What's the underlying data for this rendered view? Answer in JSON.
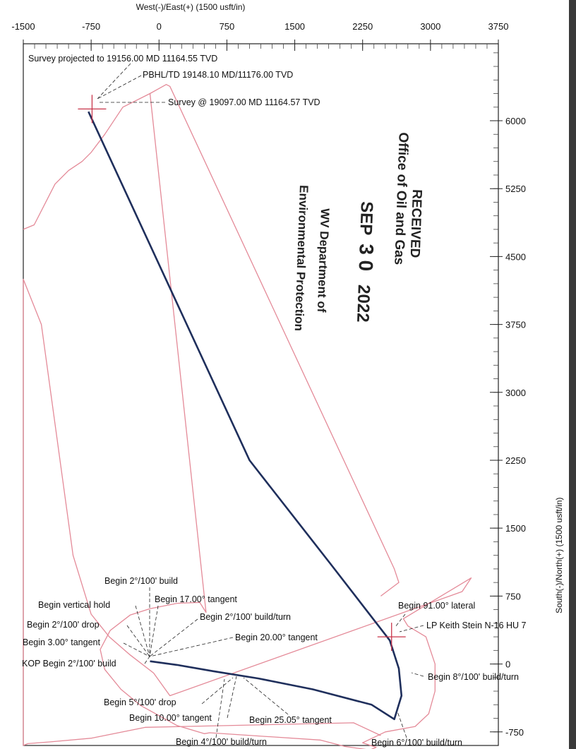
{
  "chart_data": {
    "type": "line",
    "x_axis": {
      "label": "West(-)/East(+) (1500 usft/in)",
      "range": [
        -1500,
        3750
      ],
      "ticks": [
        -1500,
        -750,
        0,
        750,
        1500,
        2250,
        3000,
        3750
      ],
      "tick_labels": [
        "-1500",
        "-750",
        "0",
        "750",
        "1500",
        "2250",
        "3000",
        "3750"
      ]
    },
    "y_axis": {
      "label": "South(-)/North(+) (1500 usft/in)",
      "range": [
        -900,
        6850
      ],
      "ticks": [
        -750,
        0,
        750,
        1500,
        2250,
        3000,
        3750,
        4500,
        5250,
        6000
      ],
      "tick_labels": [
        "-750",
        "0",
        "750",
        "1500",
        "2250",
        "3000",
        "3750",
        "4500",
        "5250",
        "6000"
      ]
    },
    "series": [
      {
        "color": "#e48a98",
        "x": [
          2450,
          2150,
          -150,
          -450,
          -750,
          -1200,
          -1450,
          -1500,
          -1500,
          -1300,
          -950,
          -750,
          -550,
          -320,
          -60,
          120,
          3350,
          3450,
          2700,
          2750,
          2950,
          3050,
          3050,
          2980,
          2830,
          2500,
          2250,
          2400,
          2330,
          2050,
          1780,
          560,
          500,
          200,
          -200,
          -420,
          -600,
          -650,
          -540,
          -320,
          -100,
          200
        ],
        "y": [
          -790,
          -650,
          -700,
          -760,
          -820,
          -860,
          -880,
          -900,
          4250,
          3750,
          1200,
          550,
          300,
          100,
          -100,
          -350,
          800,
          950,
          500,
          420,
          300,
          0,
          -300,
          -550,
          -690,
          -750,
          -870,
          -920,
          -950,
          -910,
          -840,
          -760,
          -770,
          -680,
          -460,
          -280,
          -60,
          160,
          370,
          540,
          610,
          670
        ]
      },
      {
        "color": "#e48a98",
        "x": [
          200,
          450,
          520,
          -100,
          -400,
          -600,
          -750,
          -850,
          -1000,
          -1150,
          -1380,
          -1500
        ],
        "y": [
          670,
          680,
          570,
          6300,
          6150,
          5850,
          5650,
          5550,
          5450,
          5300,
          4850,
          4800
        ]
      },
      {
        "color": "#e48a98",
        "x": [
          -100,
          80,
          120,
          2600,
          2650,
          2450
        ],
        "y": [
          6300,
          6400,
          6380,
          1050,
          900,
          750
        ]
      },
      {
        "name": "Well Path",
        "color": "#1f2f5c",
        "x": [
          -100,
          200,
          600,
          1100,
          1700,
          2350,
          2600,
          2680,
          2650,
          2550,
          1900,
          1000,
          -780
        ],
        "y": [
          30,
          -10,
          -80,
          -160,
          -280,
          -450,
          -610,
          -350,
          -50,
          260,
          1100,
          2250,
          6100
        ]
      }
    ],
    "markers": [
      {
        "x": -740,
        "y": 6130,
        "color": "#c8354a"
      },
      {
        "x": 2570,
        "y": 300,
        "color": "#c8354a"
      }
    ],
    "annotations": [
      {
        "text": "Survey projected to 19156.00 MD 11164.55 TVD",
        "color": "#5a6a8e"
      },
      {
        "text": "PBHL/TD 19148.10 MD/11176.00 TVD",
        "color": "#111111"
      },
      {
        "text": "Survey @ 19097.00 MD 11164.57 TVD",
        "color": "#5a6a8e"
      },
      {
        "text": "Begin 2°/100' build",
        "color": "#111111"
      },
      {
        "text": "Begin vertical hold",
        "color": "#111111"
      },
      {
        "text": "Begin 17.00° tangent",
        "color": "#111111"
      },
      {
        "text": "Begin 2°/100' drop",
        "color": "#111111"
      },
      {
        "text": "Begin 2°/100' build/turn",
        "color": "#111111"
      },
      {
        "text": "Begin 3.00° tangent",
        "color": "#111111"
      },
      {
        "text": "Begin 20.00° tangent",
        "color": "#111111"
      },
      {
        "text": "KOP Begin 2°/100' build",
        "color": "#111111"
      },
      {
        "text": "Begin 5°/100' drop",
        "color": "#111111"
      },
      {
        "text": "Begin 10.00° tangent",
        "color": "#111111"
      },
      {
        "text": "Begin 25.05° tangent",
        "color": "#111111"
      },
      {
        "text": "Begin 4°/100' build/turn",
        "color": "#111111"
      },
      {
        "text": "Begin 91.00° lateral",
        "color": "#111111"
      },
      {
        "text": "LP Keith Stein N-16 HU 7",
        "color": "#111111"
      },
      {
        "text": "Begin 8°/100' build/turn",
        "color": "#111111"
      },
      {
        "text": "Begin 6°/100' build/turn",
        "color": "#111111"
      }
    ],
    "grid": false
  },
  "stamp": {
    "line1": "RECEIVED",
    "line2": "Office of Oil and Gas",
    "date_month": "SEP",
    "date_day": "3 0",
    "date_year": "2022",
    "line3": "WV Department of",
    "line4": "Environmental Protection"
  }
}
